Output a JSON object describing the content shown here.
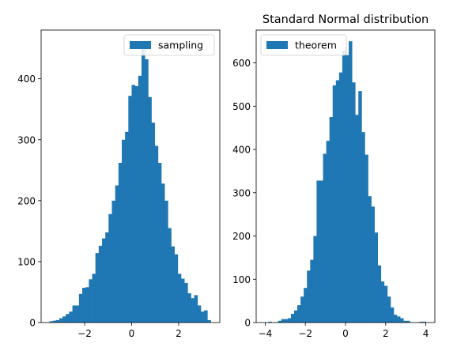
{
  "chart_data": [
    {
      "type": "bar",
      "subtype": "histogram",
      "title": "",
      "xlabel": "",
      "ylabel": "",
      "xlim": [
        -3.85,
        3.75
      ],
      "ylim": [
        0,
        480
      ],
      "xticks": [
        -2,
        0,
        2
      ],
      "xtick_labels": [
        "−2",
        "0",
        "2"
      ],
      "yticks": [
        0,
        100,
        200,
        300,
        400
      ],
      "ytick_labels": [
        "0",
        "100",
        "200",
        "300",
        "400"
      ],
      "grid": false,
      "legend": {
        "position": "top-right"
      },
      "color": "#1f77b4",
      "bin_range": [
        -3.5,
        3.5
      ],
      "series": [
        {
          "name": "sampling",
          "values": [
            2,
            3,
            4,
            7,
            10,
            14,
            18,
            28,
            28,
            47,
            57,
            58,
            71,
            80,
            114,
            126,
            138,
            148,
            178,
            200,
            225,
            262,
            300,
            313,
            372,
            390,
            388,
            405,
            462,
            432,
            370,
            328,
            290,
            262,
            228,
            200,
            155,
            125,
            112,
            80,
            72,
            65,
            48,
            40,
            45,
            28,
            18,
            20,
            4,
            0
          ]
        }
      ]
    },
    {
      "type": "bar",
      "subtype": "histogram",
      "title": "Standard Normal distribution",
      "xlabel": "",
      "ylabel": "",
      "xlim": [
        -4.45,
        4.45
      ],
      "ylim": [
        0,
        676
      ],
      "xticks": [
        -4,
        -2,
        0,
        2,
        4
      ],
      "xtick_labels": [
        "−4",
        "−2",
        "0",
        "2",
        "4"
      ],
      "yticks": [
        0,
        100,
        200,
        300,
        400,
        500,
        600
      ],
      "ytick_labels": [
        "0",
        "100",
        "200",
        "300",
        "400",
        "500",
        "600"
      ],
      "grid": false,
      "legend": {
        "position": "top-left"
      },
      "color": "#1f77b4",
      "bin_range": [
        -4.0,
        4.0
      ],
      "series": [
        {
          "name": "theorem",
          "values": [
            0,
            2,
            0,
            0,
            4,
            8,
            8,
            10,
            20,
            28,
            40,
            60,
            80,
            120,
            145,
            200,
            328,
            328,
            390,
            420,
            475,
            548,
            560,
            578,
            628,
            618,
            650,
            555,
            480,
            535,
            440,
            388,
            292,
            268,
            208,
            132,
            95,
            85,
            60,
            35,
            18,
            14,
            10,
            4,
            4,
            0,
            0,
            0,
            2,
            2
          ]
        }
      ]
    }
  ]
}
